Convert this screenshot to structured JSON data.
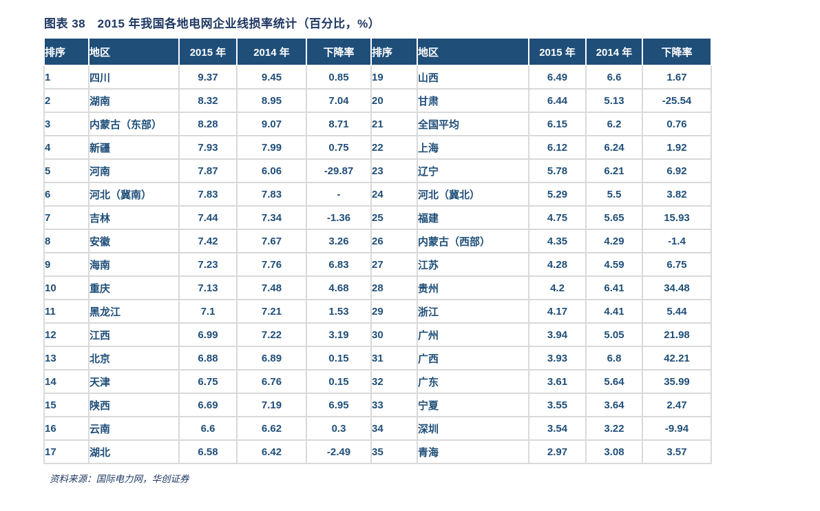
{
  "figure": {
    "title": "图表 38　2015 年我国各地电网企业线损率统计（百分比，%）",
    "source": "资料来源：国际电力网，华创证券"
  },
  "colors": {
    "header_bg": "#1F4E79",
    "body_text": "#1F4E79",
    "title_text": "#1F3864",
    "increase_red": "#FF0000",
    "decrease_green": "#00B050",
    "gridline": "#D9D9D9"
  },
  "chart_data": {
    "type": "table",
    "title": "图表 38　2015 年我国各地电网企业线损率统计（百分比，%）",
    "columns": [
      "排序",
      "地区",
      "2015 年",
      "2014 年",
      "下降率",
      "排序",
      "地区",
      "2015 年",
      "2014 年",
      "下降率"
    ],
    "rows": [
      {
        "left": {
          "rank": "1",
          "region": "四川",
          "y2015": "9.37",
          "y2014": "9.45",
          "decline": "0.85",
          "decline_color": "red"
        },
        "right": {
          "rank": "19",
          "region": "山西",
          "y2015": "6.49",
          "y2014": "6.6",
          "decline": "1.67",
          "decline_color": "red"
        }
      },
      {
        "left": {
          "rank": "2",
          "region": "湖南",
          "y2015": "8.32",
          "y2014": "8.95",
          "decline": "7.04",
          "decline_color": "red"
        },
        "right": {
          "rank": "20",
          "region": "甘肃",
          "y2015": "6.44",
          "y2014": "5.13",
          "decline": "-25.54",
          "decline_color": "green"
        }
      },
      {
        "left": {
          "rank": "3",
          "region": "内蒙古（东部）",
          "y2015": "8.28",
          "y2014": "9.07",
          "decline": "8.71",
          "decline_color": "red"
        },
        "right": {
          "rank": "21",
          "region": "全国平均",
          "y2015": "6.15",
          "y2014": "6.2",
          "decline": "0.76",
          "decline_color": "red",
          "emphasis": true
        }
      },
      {
        "left": {
          "rank": "4",
          "region": "新疆",
          "y2015": "7.93",
          "y2014": "7.99",
          "decline": "0.75",
          "decline_color": "red"
        },
        "right": {
          "rank": "22",
          "region": "上海",
          "y2015": "6.12",
          "y2014": "6.24",
          "decline": "1.92",
          "decline_color": "red"
        }
      },
      {
        "left": {
          "rank": "5",
          "region": "河南",
          "y2015": "7.87",
          "y2014": "6.06",
          "decline": "-29.87",
          "decline_color": "green"
        },
        "right": {
          "rank": "23",
          "region": "辽宁",
          "y2015": "5.78",
          "y2014": "6.21",
          "decline": "6.92",
          "decline_color": "red"
        }
      },
      {
        "left": {
          "rank": "6",
          "region": "河北（冀南）",
          "y2015": "7.83",
          "y2014": "7.83",
          "decline": "-",
          "decline_color": "green"
        },
        "right": {
          "rank": "24",
          "region": "河北（冀北）",
          "y2015": "5.29",
          "y2014": "5.5",
          "decline": "3.82",
          "decline_color": "red"
        }
      },
      {
        "left": {
          "rank": "7",
          "region": "吉林",
          "y2015": "7.44",
          "y2014": "7.34",
          "decline": "-1.36",
          "decline_color": "green"
        },
        "right": {
          "rank": "25",
          "region": "福建",
          "y2015": "4.75",
          "y2014": "5.65",
          "decline": "15.93",
          "decline_color": "red"
        }
      },
      {
        "left": {
          "rank": "8",
          "region": "安徽",
          "y2015": "7.42",
          "y2014": "7.67",
          "decline": "3.26",
          "decline_color": "red"
        },
        "right": {
          "rank": "26",
          "region": "内蒙古（西部）",
          "y2015": "4.35",
          "y2014": "4.29",
          "decline": "-1.4",
          "decline_color": "green"
        }
      },
      {
        "left": {
          "rank": "9",
          "region": "海南",
          "y2015": "7.23",
          "y2014": "7.76",
          "decline": "6.83",
          "decline_color": "red"
        },
        "right": {
          "rank": "27",
          "region": "江苏",
          "y2015": "4.28",
          "y2014": "4.59",
          "decline": "6.75",
          "decline_color": "red"
        }
      },
      {
        "left": {
          "rank": "10",
          "region": "重庆",
          "y2015": "7.13",
          "y2014": "7.48",
          "decline": "4.68",
          "decline_color": "red"
        },
        "right": {
          "rank": "28",
          "region": "贵州",
          "y2015": "4.2",
          "y2014": "6.41",
          "decline": "34.48",
          "decline_color": "red"
        }
      },
      {
        "left": {
          "rank": "11",
          "region": "黑龙江",
          "y2015": "7.1",
          "y2014": "7.21",
          "decline": "1.53",
          "decline_color": "red"
        },
        "right": {
          "rank": "29",
          "region": "浙江",
          "y2015": "4.17",
          "y2014": "4.41",
          "decline": "5.44",
          "decline_color": "red"
        }
      },
      {
        "left": {
          "rank": "12",
          "region": "江西",
          "y2015": "6.99",
          "y2014": "7.22",
          "decline": "3.19",
          "decline_color": "red"
        },
        "right": {
          "rank": "30",
          "region": "广州",
          "y2015": "3.94",
          "y2014": "5.05",
          "decline": "21.98",
          "decline_color": "red"
        }
      },
      {
        "left": {
          "rank": "13",
          "region": "北京",
          "y2015": "6.88",
          "y2014": "6.89",
          "decline": "0.15",
          "decline_color": "red"
        },
        "right": {
          "rank": "31",
          "region": "广西",
          "y2015": "3.93",
          "y2014": "6.8",
          "decline": "42.21",
          "decline_color": "red"
        }
      },
      {
        "left": {
          "rank": "14",
          "region": "天津",
          "y2015": "6.75",
          "y2014": "6.76",
          "decline": "0.15",
          "decline_color": "red"
        },
        "right": {
          "rank": "32",
          "region": "广东",
          "y2015": "3.61",
          "y2014": "5.64",
          "decline": "35.99",
          "decline_color": "red"
        }
      },
      {
        "left": {
          "rank": "15",
          "region": "陕西",
          "y2015": "6.69",
          "y2014": "7.19",
          "decline": "6.95",
          "decline_color": "red"
        },
        "right": {
          "rank": "33",
          "region": "宁夏",
          "y2015": "3.55",
          "y2014": "3.64",
          "decline": "2.47",
          "decline_color": "red"
        }
      },
      {
        "left": {
          "rank": "16",
          "region": "云南",
          "y2015": "6.6",
          "y2014": "6.62",
          "decline": "0.3",
          "decline_color": "red"
        },
        "right": {
          "rank": "34",
          "region": "深圳",
          "y2015": "3.54",
          "y2014": "3.22",
          "decline": "-9.94",
          "decline_color": "green"
        }
      },
      {
        "left": {
          "rank": "17",
          "region": "湖北",
          "y2015": "6.58",
          "y2014": "6.42",
          "decline": "-2.49",
          "decline_color": "green"
        },
        "right": {
          "rank": "35",
          "region": "青海",
          "y2015": "2.97",
          "y2014": "3.08",
          "decline": "3.57",
          "decline_color": "red"
        }
      }
    ],
    "source": "资料来源：国际电力网，华创证券"
  }
}
